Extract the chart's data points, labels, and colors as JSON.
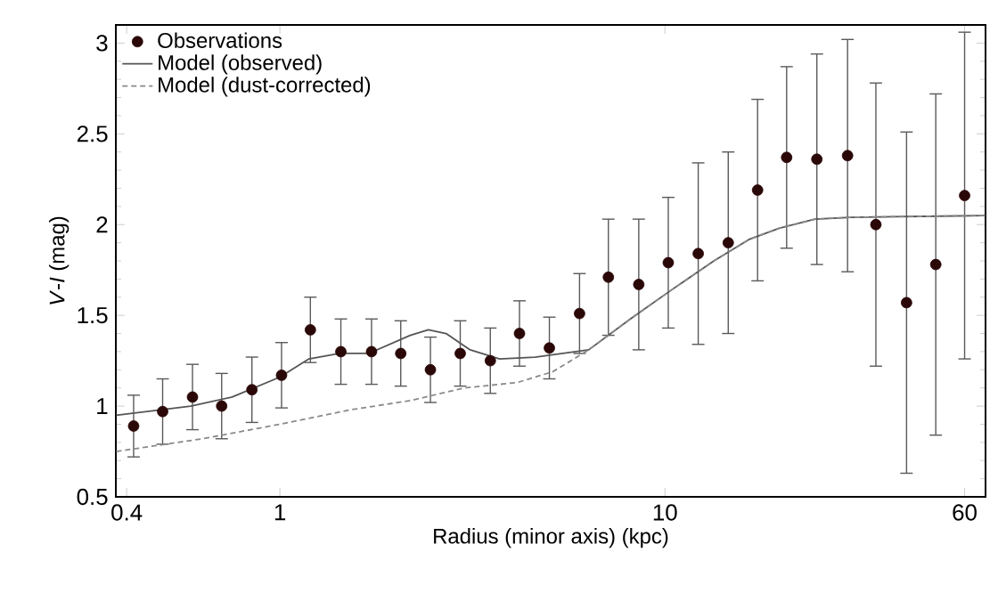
{
  "chart_data": {
    "type": "scatter",
    "xlabel": "Radius (minor axis) (kpc)",
    "ylabel": "*V*-*I* (mag)",
    "log": "x",
    "xlim": [
      0.375,
      68
    ],
    "ylim": [
      0.5,
      3.1
    ],
    "xticks": [
      0.4,
      1,
      10,
      60
    ],
    "yticks": [
      0.5,
      1,
      1.5,
      2,
      2.5,
      3
    ],
    "legend": "top left",
    "series": [
      {
        "name": "Observations",
        "marker": "circle",
        "color": "#2b0808",
        "x": [
          0.417,
          0.496,
          0.593,
          0.706,
          0.846,
          1.01,
          1.2,
          1.44,
          1.73,
          2.06,
          2.46,
          2.94,
          3.52,
          4.19,
          5.01,
          6.0,
          7.13,
          8.55,
          10.2,
          12.2,
          14.6,
          17.4,
          20.7,
          24.8,
          29.8,
          35.3,
          42.4,
          50.5,
          60
        ],
        "values": [
          0.89,
          0.97,
          1.05,
          1.0,
          1.09,
          1.17,
          1.42,
          1.3,
          1.3,
          1.29,
          1.2,
          1.29,
          1.25,
          1.4,
          1.32,
          1.51,
          1.71,
          1.67,
          1.79,
          1.84,
          1.9,
          2.19,
          2.37,
          2.36,
          2.38,
          2.0,
          1.57,
          1.78,
          2.16
        ],
        "errors": [
          0.17,
          0.18,
          0.18,
          0.18,
          0.18,
          0.18,
          0.18,
          0.18,
          0.18,
          0.18,
          0.18,
          0.18,
          0.18,
          0.18,
          0.17,
          0.22,
          0.32,
          0.36,
          0.36,
          0.5,
          0.5,
          0.5,
          0.5,
          0.58,
          0.64,
          0.78,
          0.94,
          0.94,
          0.9
        ]
      },
      {
        "name": "Model (observed)",
        "type": "line",
        "marker": "none",
        "line_style": "solid",
        "color": "#555555",
        "x": [
          0.376,
          0.587,
          0.752,
          1.0,
          1.19,
          1.43,
          1.7,
          2.18,
          2.43,
          2.7,
          3.12,
          3.72,
          4.6,
          6.34,
          8.13,
          10.4,
          13.4,
          16.6,
          19.8,
          24.5,
          30.3,
          68
        ],
        "values": [
          0.95,
          1.0,
          1.05,
          1.16,
          1.26,
          1.29,
          1.29,
          1.39,
          1.42,
          1.4,
          1.31,
          1.26,
          1.27,
          1.31,
          1.48,
          1.64,
          1.8,
          1.92,
          1.98,
          2.03,
          2.04,
          2.05
        ]
      },
      {
        "name": "Model (dust-corrected)",
        "type": "line",
        "marker": "none",
        "line_style": "dashed",
        "color": "#8a8a8a",
        "x": [
          0.376,
          0.63,
          1.0,
          1.53,
          2.18,
          3.01,
          4.14,
          5.12,
          6.34,
          8.13,
          10.4,
          13.4,
          16.6,
          19.8,
          24.5,
          30.3,
          68
        ],
        "values": [
          0.75,
          0.82,
          0.9,
          0.98,
          1.03,
          1.1,
          1.13,
          1.19,
          1.31,
          1.48,
          1.64,
          1.8,
          1.92,
          1.98,
          2.03,
          2.04,
          2.05
        ]
      }
    ]
  }
}
